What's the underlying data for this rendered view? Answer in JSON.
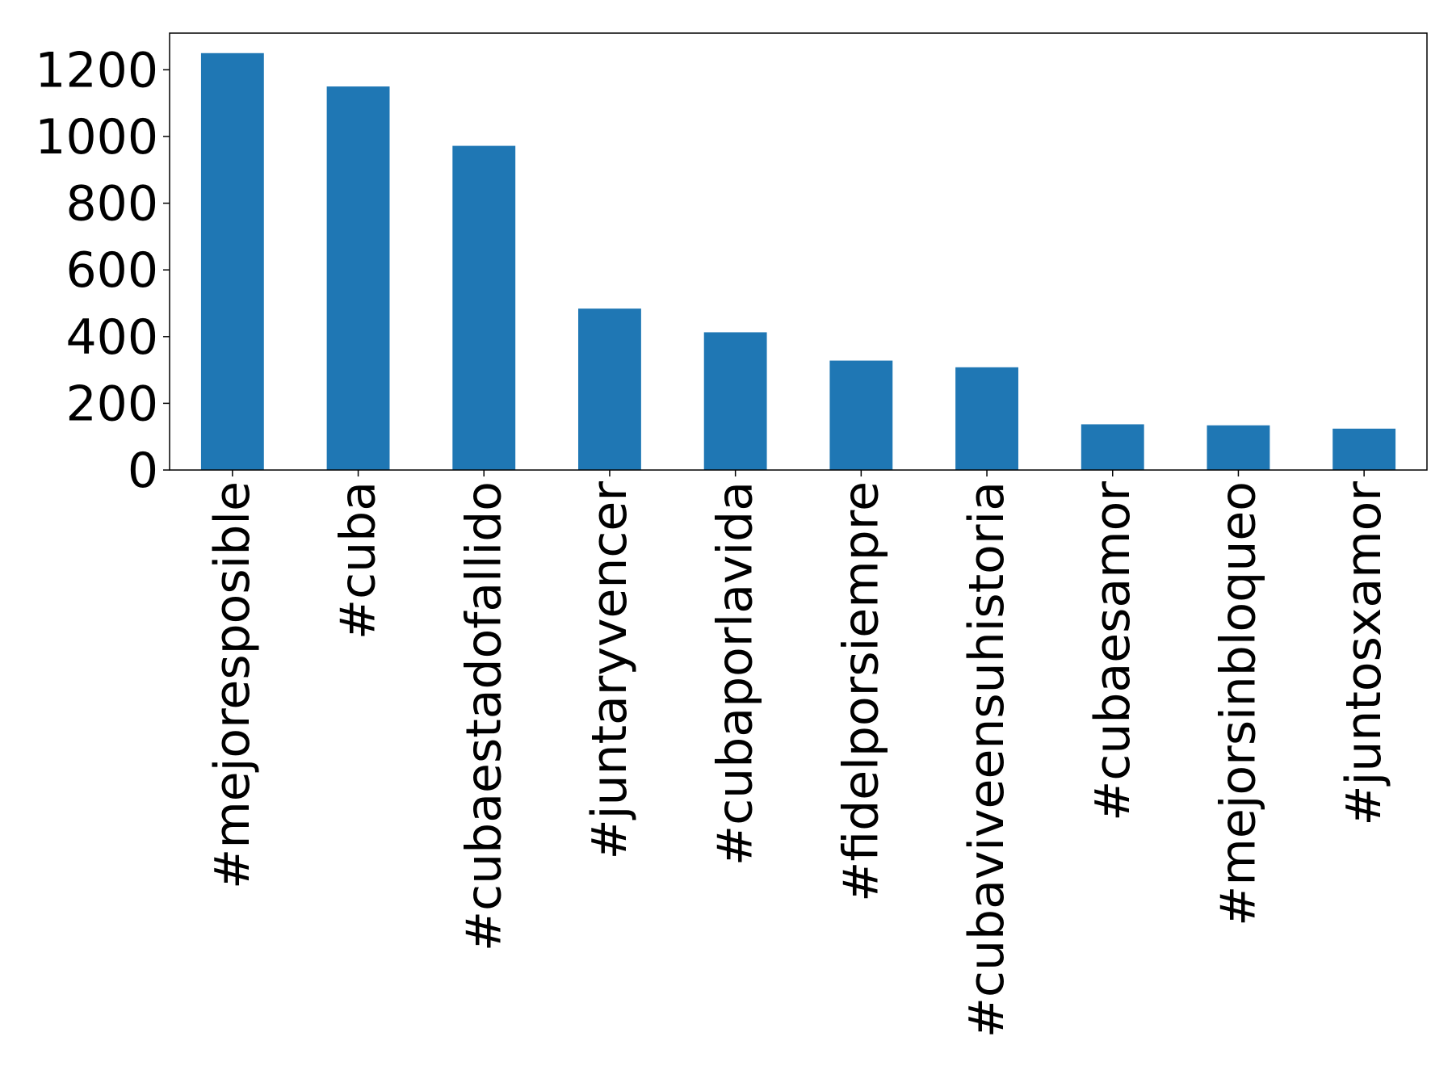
{
  "chart_data": {
    "type": "bar",
    "title": "",
    "xlabel": "",
    "ylabel": "",
    "categories": [
      "#mejoresposible",
      "#cuba",
      "#cubaestadofallido",
      "#juntaryvencer",
      "#cubaporlavida",
      "#fidelporsiempre",
      "#cubaviveensuhistoria",
      "#cubaesamor",
      "#mejorsinbloqueo",
      "#juntosxamor"
    ],
    "values": [
      1250,
      1150,
      972,
      484,
      413,
      328,
      308,
      137,
      134,
      124
    ],
    "yticks": [
      0,
      200,
      400,
      600,
      800,
      1000,
      1200
    ],
    "ylim": [
      0,
      1310
    ],
    "grid": false,
    "legend": "none",
    "bar_color": "#1f77b4"
  }
}
